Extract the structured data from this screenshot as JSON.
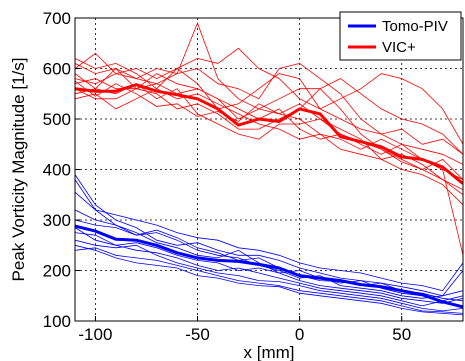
{
  "chart_data": {
    "type": "line",
    "title": "",
    "xlabel": "x [mm]",
    "ylabel": "Peak Vorticity Magnitude [1/s]",
    "xlim": [
      -110,
      80
    ],
    "ylim": [
      100,
      700
    ],
    "xticks": [
      -100,
      -50,
      0,
      50
    ],
    "yticks": [
      100,
      200,
      300,
      400,
      500,
      600,
      700
    ],
    "xtick_labels": [
      "-100",
      "-50",
      "0",
      "50"
    ],
    "ytick_labels": [
      "100",
      "200",
      "300",
      "400",
      "500",
      "600",
      "700"
    ],
    "grid": true,
    "legend_position": "top-right",
    "x": [
      -110,
      -100,
      -90,
      -80,
      -70,
      -60,
      -50,
      -40,
      -30,
      -20,
      -10,
      0,
      10,
      20,
      30,
      40,
      50,
      60,
      70,
      80
    ],
    "series": [
      {
        "name": "Tomo-PIV",
        "color": "#0000ff",
        "values": [
          288,
          278,
          262,
          260,
          250,
          235,
          225,
          220,
          218,
          212,
          205,
          190,
          185,
          180,
          172,
          168,
          160,
          152,
          138,
          128
        ]
      },
      {
        "name": "VIC+",
        "color": "#ff0000",
        "values": [
          560,
          555,
          555,
          568,
          555,
          548,
          540,
          520,
          488,
          500,
          495,
          520,
          510,
          465,
          455,
          445,
          425,
          420,
          405,
          372
        ]
      }
    ],
    "individual_runs": [
      {
        "color": "#0000ff",
        "runs": [
          [
            390,
            330,
            300,
            285,
            260,
            250,
            255,
            240,
            230,
            230,
            220,
            205,
            195,
            185,
            180,
            175,
            168,
            160,
            150,
            200
          ],
          [
            355,
            320,
            290,
            270,
            280,
            265,
            245,
            235,
            220,
            225,
            205,
            190,
            180,
            178,
            170,
            175,
            160,
            155,
            145,
            140
          ],
          [
            320,
            300,
            290,
            275,
            255,
            245,
            230,
            225,
            240,
            215,
            195,
            200,
            185,
            175,
            180,
            165,
            155,
            150,
            140,
            150
          ],
          [
            300,
            290,
            285,
            270,
            275,
            260,
            240,
            230,
            225,
            210,
            200,
            185,
            190,
            170,
            165,
            160,
            150,
            145,
            150,
            160
          ],
          [
            285,
            260,
            250,
            255,
            245,
            230,
            220,
            215,
            200,
            205,
            195,
            180,
            170,
            165,
            160,
            155,
            145,
            140,
            135,
            145
          ],
          [
            275,
            270,
            250,
            240,
            235,
            225,
            210,
            200,
            205,
            195,
            185,
            175,
            165,
            160,
            155,
            150,
            140,
            130,
            140,
            130
          ],
          [
            260,
            250,
            245,
            250,
            230,
            215,
            205,
            195,
            190,
            180,
            178,
            170,
            160,
            155,
            150,
            145,
            135,
            125,
            120,
            125
          ],
          [
            240,
            245,
            230,
            225,
            220,
            210,
            200,
            190,
            180,
            175,
            170,
            160,
            155,
            150,
            145,
            140,
            130,
            120,
            118,
            115
          ],
          [
            250,
            240,
            225,
            215,
            210,
            205,
            190,
            185,
            175,
            170,
            168,
            155,
            150,
            145,
            140,
            135,
            125,
            118,
            115,
            112
          ],
          [
            380,
            320,
            310,
            300,
            290,
            275,
            265,
            260,
            245,
            240,
            230,
            215,
            205,
            200,
            195,
            185,
            175,
            170,
            160,
            215
          ]
        ]
      },
      {
        "color": "#ff0000",
        "runs": [
          [
            620,
            600,
            610,
            590,
            560,
            600,
            620,
            610,
            640,
            600,
            580,
            540,
            520,
            540,
            560,
            590,
            580,
            560,
            520,
            450
          ],
          [
            600,
            630,
            590,
            580,
            570,
            590,
            600,
            570,
            560,
            540,
            600,
            610,
            580,
            550,
            500,
            470,
            480,
            450,
            460,
            430
          ],
          [
            580,
            570,
            590,
            600,
            580,
            600,
            570,
            520,
            530,
            560,
            590,
            580,
            520,
            500,
            480,
            470,
            450,
            440,
            430,
            410
          ],
          [
            570,
            580,
            560,
            560,
            590,
            570,
            560,
            540,
            500,
            520,
            540,
            560,
            560,
            580,
            550,
            520,
            500,
            490,
            470,
            430
          ],
          [
            560,
            540,
            540,
            560,
            550,
            520,
            530,
            510,
            480,
            480,
            500,
            520,
            560,
            520,
            470,
            440,
            420,
            400,
            420,
            380
          ],
          [
            550,
            560,
            550,
            570,
            540,
            560,
            510,
            490,
            470,
            460,
            490,
            490,
            500,
            480,
            460,
            420,
            430,
            410,
            380,
            360
          ],
          [
            590,
            560,
            600,
            580,
            600,
            590,
            690,
            580,
            540,
            520,
            510,
            500,
            470,
            460,
            440,
            460,
            440,
            420,
            400,
            380
          ],
          [
            540,
            550,
            520,
            540,
            560,
            540,
            550,
            530,
            510,
            490,
            480,
            460,
            470,
            440,
            430,
            420,
            400,
            390,
            370,
            330
          ],
          [
            610,
            590,
            600,
            560,
            570,
            550,
            560,
            540,
            520,
            500,
            520,
            480,
            460,
            470,
            450,
            430,
            450,
            420,
            400,
            230
          ],
          [
            575,
            545,
            570,
            550,
            525,
            530,
            505,
            515,
            495,
            530,
            510,
            530,
            500,
            470,
            455,
            440,
            415,
            400,
            380,
            350
          ]
        ]
      }
    ]
  }
}
